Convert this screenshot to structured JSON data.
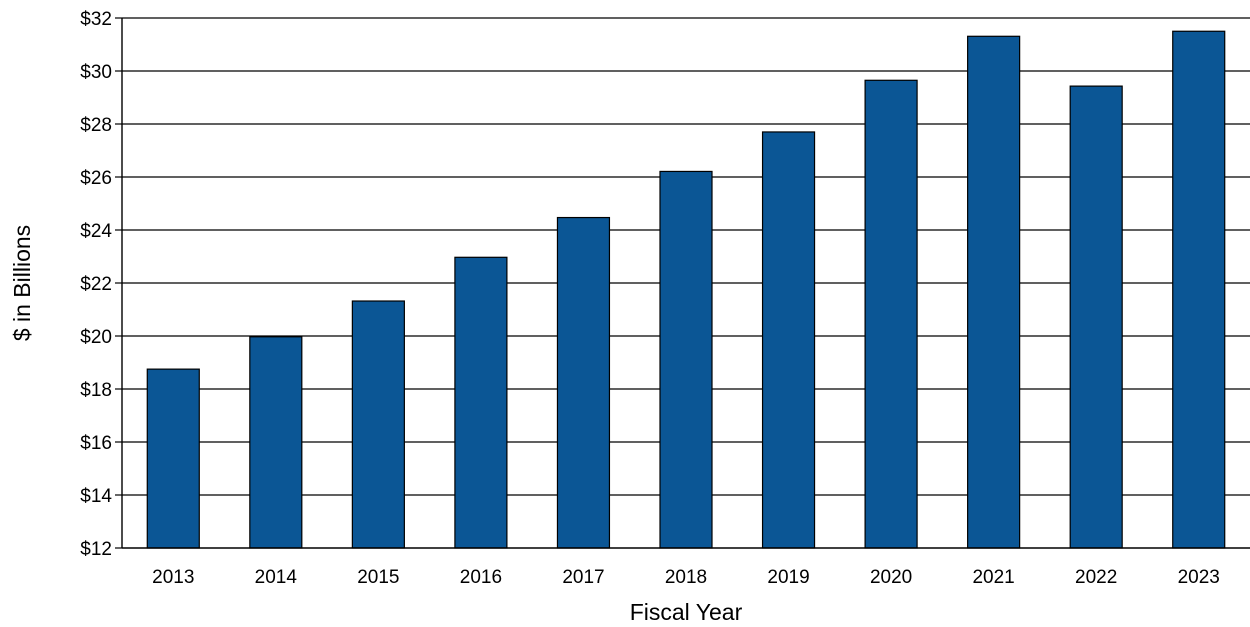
{
  "chart_data": {
    "type": "bar",
    "title": "",
    "xlabel": "Fiscal Year",
    "ylabel": "$ in Billions",
    "categories": [
      "2013",
      "2014",
      "2015",
      "2016",
      "2017",
      "2018",
      "2019",
      "2020",
      "2021",
      "2022",
      "2023"
    ],
    "values": [
      18.75,
      19.97,
      21.32,
      22.97,
      24.47,
      26.21,
      27.7,
      29.65,
      31.31,
      29.43,
      31.5
    ],
    "ylim": [
      12,
      32
    ],
    "yticks": [
      12,
      14,
      16,
      18,
      20,
      22,
      24,
      26,
      28,
      30,
      32
    ],
    "ytick_labels": [
      "$12",
      "$14",
      "$16",
      "$18",
      "$20",
      "$22",
      "$24",
      "$26",
      "$28",
      "$30",
      "$32"
    ],
    "grid": true,
    "legend": "none",
    "colors": {
      "bar": "#0b5695",
      "bar_edge": "#000000",
      "grid": "#000000",
      "axis": "#000000"
    }
  }
}
